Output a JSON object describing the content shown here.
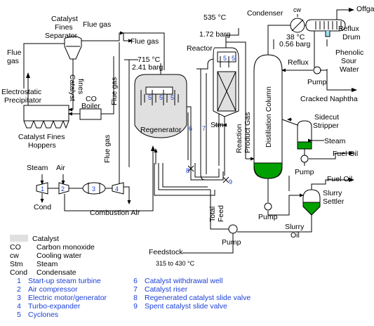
{
  "labels": {
    "catalyst_fines_separator": [
      "Catalyst",
      "Fines",
      "Separator"
    ],
    "flue_gas": "Flue gas",
    "flue_gas_top": "Flue gas",
    "flue_gas_left": [
      "Flue",
      "gas"
    ],
    "catalyst_fines_vertical": [
      "Catalyst",
      "fines"
    ],
    "co_boiler": [
      "CO",
      "Boiler"
    ],
    "electrostatic_precipitator": [
      "Electrostatic",
      "Precipitator"
    ],
    "catalyst_fines_hoppers": [
      "Catalyst Fines",
      "Hoppers"
    ],
    "flue_gas_vertical_1": "Flue gas",
    "flue_gas_vertical_2": "Flue gas",
    "regen_conditions": [
      "715 °C",
      "2.41 barg"
    ],
    "regenerator": "Regenerator",
    "reactor": "Reactor",
    "reactor_conditions": [
      "535 °C",
      "1.72 barg"
    ],
    "stm": "Stm",
    "reaction_product_gas": [
      "Reaction",
      "Product Gas"
    ],
    "distillation_column": "Distillation Column",
    "condenser": "Condenser",
    "cw": "cw",
    "condenser_conditions": [
      "38 °C",
      "0.56 barg"
    ],
    "offgas": "Offgas",
    "reflux_drum": [
      "Reflux",
      "Drum"
    ],
    "phenolic_sour_water": [
      "Phenolic",
      "Sour",
      "Water"
    ],
    "reflux": "Reflux",
    "pump": "Pump",
    "cracked_naphtha": "Cracked Naphtha",
    "sidecut_stripper": [
      "Sidecut",
      "Stripper"
    ],
    "steam": "Steam",
    "fuel_oil_1": "Fuel Oil",
    "fuel_oil_2": "Fuel Oil",
    "slurry_settler": [
      "Slurry",
      "Settler"
    ],
    "slurry_oil": [
      "Slurry",
      "Oil"
    ],
    "steam_left": "Steam",
    "air": "Air",
    "cond": "Cond",
    "combustion_air": "Combustion Air",
    "total_feed": [
      "Total",
      "Feed"
    ],
    "feedstock": "Feedstock",
    "feedstock_temp": "315 to 430 °C"
  },
  "numbers": [
    "1",
    "2",
    "3",
    "4",
    "5",
    "6",
    "7",
    "8",
    "9"
  ],
  "legend": [
    {
      "key": "",
      "value": "Catalyst",
      "swatch": true
    },
    {
      "key": "CO",
      "value": "Carbon monoxide"
    },
    {
      "key": "cw",
      "value": "Cooling water"
    },
    {
      "key": "Stm",
      "value": "Steam"
    },
    {
      "key": "Cond",
      "value": "Condensate"
    },
    {
      "key": "1",
      "value": "Start-up steam turbine",
      "numbered": true
    },
    {
      "key": "2",
      "value": "Air compressor",
      "numbered": true
    },
    {
      "key": "3",
      "value": "Electric motor/generator",
      "numbered": true
    },
    {
      "key": "4",
      "value": "Turbo-expander",
      "numbered": true
    },
    {
      "key": "5",
      "value": "Cyclones",
      "numbered": true
    }
  ],
  "legend2": [
    {
      "key": "6",
      "value": "Catalyst withdrawal well"
    },
    {
      "key": "7",
      "value": "Catalyst riser"
    },
    {
      "key": "8",
      "value": "Regenerated catalyst slide valve"
    },
    {
      "key": "9",
      "value": "Spent catalyst slide valve"
    }
  ],
  "colors": {
    "line": "#000000",
    "number": "#1a3fd6",
    "catalyst": "#e0e0e0",
    "liquid": "#00a000",
    "water": "#9ee0f0"
  }
}
